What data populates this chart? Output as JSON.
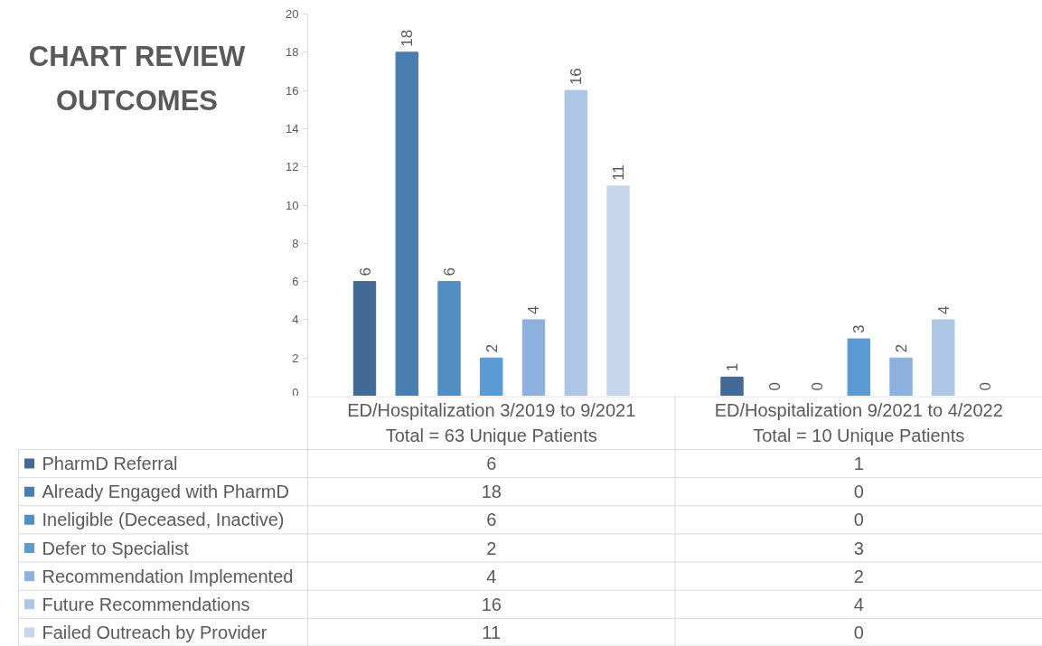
{
  "chart_data": {
    "type": "bar",
    "title": "CHART REVIEW OUTCOMES",
    "categories": [
      "ED/Hospitalization 3/2019 to 9/2021\nTotal = 63 Unique Patients",
      "ED/Hospitalization 9/2021 to 4/2022\nTotal = 10 Unique Patients"
    ],
    "series": [
      {
        "name": "PharmD Referral",
        "color": "#426a94",
        "values": [
          6,
          1
        ],
        "value_labels": [
          "6",
          "1"
        ]
      },
      {
        "name": "Already Engaged with PharmD",
        "color": "#4a7eb0",
        "values": [
          18,
          0
        ],
        "value_labels": [
          "18",
          "0"
        ]
      },
      {
        "name": "Ineligible (Deceased, Inactive)",
        "color": "#528dc3",
        "values": [
          6,
          0
        ],
        "value_labels": [
          "6",
          "0"
        ]
      },
      {
        "name": "Defer to Specialist",
        "color": "#5b9bd5",
        "values": [
          2,
          3
        ],
        "value_labels": [
          "2",
          "3"
        ]
      },
      {
        "name": "Recommendation Implemented",
        "color": "#8cb1dd",
        "values": [
          4,
          2
        ],
        "value_labels": [
          "4",
          "2"
        ]
      },
      {
        "name": "Future Recommendations",
        "color": "#adc6e5",
        "values": [
          16,
          4
        ],
        "value_labels": [
          "16",
          "4"
        ]
      },
      {
        "name": "Failed Outreach by Provider",
        "color": "#c6d7ed",
        "values": [
          11,
          0
        ],
        "value_labels": [
          "11",
          "0"
        ]
      }
    ],
    "ylim": [
      0,
      20
    ],
    "yticks": [
      0,
      2,
      4,
      6,
      8,
      10,
      12,
      14,
      16,
      18,
      20
    ],
    "data_labels": true,
    "legend": "bottom"
  }
}
